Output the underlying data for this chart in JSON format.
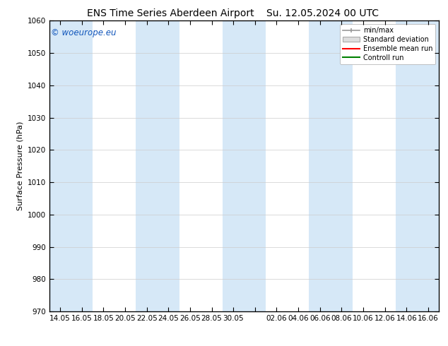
{
  "title_left": "ENS Time Series Aberdeen Airport",
  "title_right": "Su. 12.05.2024 00 UTC",
  "ylabel": "Surface Pressure (hPa)",
  "ylim": [
    970,
    1060
  ],
  "yticks": [
    970,
    980,
    990,
    1000,
    1010,
    1020,
    1030,
    1040,
    1050,
    1060
  ],
  "xtick_labels": [
    "14.05",
    "16.05",
    "18.05",
    "20.05",
    "22.05",
    "24.05",
    "26.05",
    "28.05",
    "30.05",
    "",
    "02.06",
    "04.06",
    "06.06",
    "08.06",
    "10.06",
    "12.06",
    "14.06",
    "16.06"
  ],
  "bg_color": "#ffffff",
  "plot_bg_color": "#ffffff",
  "blue_band_color": "#d6e8f7",
  "legend_labels": [
    "min/max",
    "Standard deviation",
    "Ensemble mean run",
    "Controll run"
  ],
  "legend_colors": [
    "#888888",
    "#cccccc",
    "#ff0000",
    "#008000"
  ],
  "watermark": "© woeurope.eu",
  "watermark_color": "#1055bb",
  "title_fontsize": 10,
  "axis_label_fontsize": 8,
  "tick_fontsize": 7.5
}
